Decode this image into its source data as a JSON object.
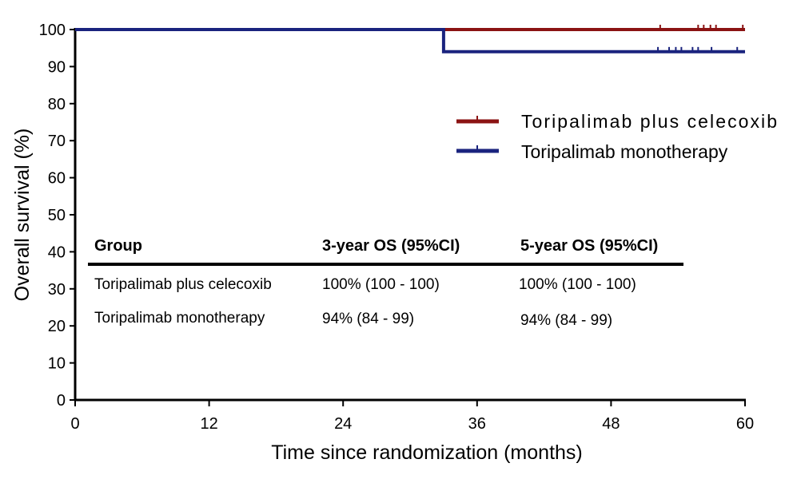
{
  "chart_data": {
    "type": "line",
    "subtype": "kaplan-meier",
    "xlabel": "Time since randomization (months)",
    "ylabel": "Overall survival (%)",
    "xlim": [
      0,
      60
    ],
    "ylim": [
      0,
      100
    ],
    "xticks": [
      0,
      12,
      24,
      36,
      48,
      60
    ],
    "yticks": [
      0,
      10,
      20,
      30,
      40,
      50,
      60,
      70,
      80,
      90,
      100
    ],
    "grid": false,
    "legend_position": "top-right",
    "series": [
      {
        "name": "Toripalimab plus celecoxib",
        "color": "#8b1313",
        "steps": [
          [
            0,
            100
          ],
          [
            60,
            100
          ]
        ],
        "censor_times": [
          52.4,
          55.8,
          56.3,
          56.9,
          57.4,
          59.8
        ]
      },
      {
        "name": "Toripalimab monotherapy",
        "color": "#1a237e",
        "steps": [
          [
            0,
            100
          ],
          [
            33,
            100
          ],
          [
            33,
            94
          ],
          [
            60,
            94
          ]
        ],
        "censor_times": [
          52.2,
          53.2,
          53.8,
          54.3,
          55.3,
          55.8,
          57.0,
          59.3
        ]
      }
    ],
    "table": {
      "headers": [
        "Group",
        "3-year OS (95%CI)",
        "5-year OS (95%CI)"
      ],
      "rows": [
        [
          "Toripalimab plus celecoxib",
          "100% (100 - 100)",
          "100% (100 - 100)"
        ],
        [
          "Toripalimab monotherapy",
          "94% (84 - 99)",
          "94% (84 - 99)"
        ]
      ]
    }
  }
}
